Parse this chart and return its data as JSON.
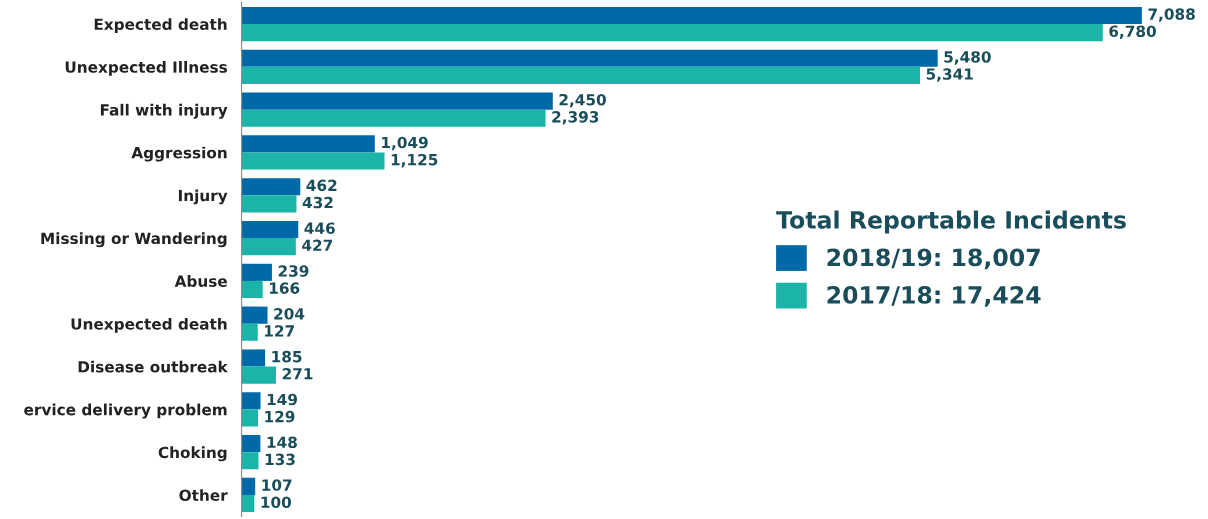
{
  "chart_data": {
    "type": "bar",
    "orientation": "horizontal",
    "legend": "right",
    "legend_title": "Total Reportable Incidents",
    "grid": false,
    "tick_labels": "y",
    "categories": [
      "Expected death",
      "Unexpected Illness",
      "Fall with injury",
      "Aggression",
      "Injury",
      "Missing or Wandering",
      "Abuse",
      "Unexpected death",
      "Disease outbreak",
      "ervice delivery problem",
      "Choking",
      "Other"
    ],
    "series": [
      {
        "name": "2018/19: 18,007",
        "color": "#0069a8",
        "values": [
          7088,
          5480,
          2450,
          1049,
          462,
          446,
          239,
          204,
          185,
          149,
          148,
          107
        ],
        "value_labels": [
          "7,088",
          "5,480",
          "2,450",
          "1,049",
          "462",
          "446",
          "239",
          "204",
          "185",
          "149",
          "148",
          "107"
        ]
      },
      {
        "name": "2017/18: 17,424",
        "color": "#1ab5a8",
        "values": [
          6780,
          5341,
          2393,
          1125,
          432,
          427,
          166,
          127,
          271,
          129,
          133,
          100
        ],
        "value_labels": [
          "6,780",
          "5,341",
          "2,393",
          "1,125",
          "432",
          "427",
          "166",
          "127",
          "271",
          "129",
          "133",
          "100"
        ]
      }
    ]
  }
}
